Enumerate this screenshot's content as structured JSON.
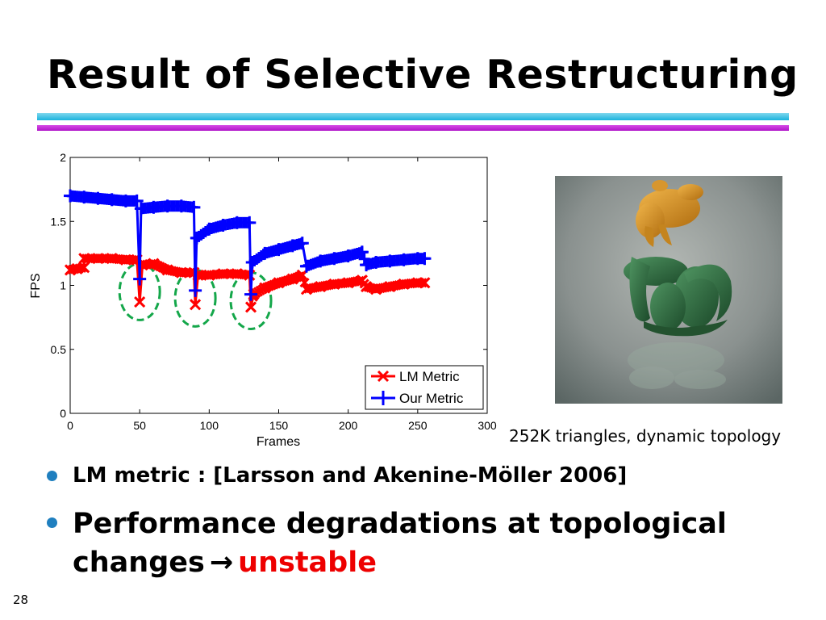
{
  "slide": {
    "title": "Result of Selective Restructuring",
    "page_number": "28"
  },
  "image": {
    "caption": "252K triangles, dynamic topology",
    "icon": "dragon-and-bunny-render"
  },
  "bullets": [
    {
      "text": "LM metric : [Larsson and Akenine-Möller 2006]"
    },
    {
      "text_before": "Performance degradations at topological changes",
      "arrow": "→",
      "highlight": "unstable",
      "highlight_color": "#ee0000"
    }
  ],
  "chart_data": {
    "type": "line",
    "title": "",
    "xlabel": "Frames",
    "ylabel": "FPS",
    "xlim": [
      0,
      300
    ],
    "ylim": [
      0,
      2
    ],
    "xticks": [
      0,
      50,
      100,
      150,
      200,
      250,
      300
    ],
    "yticks": [
      0,
      0.5,
      1,
      1.5,
      2
    ],
    "ytick_labels": [
      "0",
      "0.5",
      "1",
      "1.5",
      "2"
    ],
    "grid": false,
    "legend_position": "bottom-right",
    "series": [
      {
        "name": "LM Metric",
        "color": "#ff0000",
        "marker": "x",
        "points": [
          [
            0,
            1.12
          ],
          [
            5,
            1.13
          ],
          [
            10,
            1.14
          ],
          [
            10,
            1.21
          ],
          [
            20,
            1.21
          ],
          [
            30,
            1.21
          ],
          [
            40,
            1.2
          ],
          [
            48,
            1.2
          ],
          [
            50,
            0.87
          ],
          [
            52,
            1.16
          ],
          [
            60,
            1.17
          ],
          [
            70,
            1.12
          ],
          [
            80,
            1.1
          ],
          [
            89,
            1.1
          ],
          [
            90,
            0.85
          ],
          [
            92,
            1.08
          ],
          [
            100,
            1.08
          ],
          [
            110,
            1.09
          ],
          [
            120,
            1.09
          ],
          [
            129,
            1.08
          ],
          [
            130,
            0.83
          ],
          [
            132,
            0.93
          ],
          [
            140,
            0.98
          ],
          [
            150,
            1.02
          ],
          [
            160,
            1.05
          ],
          [
            167,
            1.08
          ],
          [
            170,
            0.97
          ],
          [
            180,
            0.99
          ],
          [
            190,
            1.01
          ],
          [
            200,
            1.02
          ],
          [
            210,
            1.04
          ],
          [
            213,
            0.99
          ],
          [
            220,
            0.97
          ],
          [
            230,
            0.99
          ],
          [
            240,
            1.01
          ],
          [
            250,
            1.02
          ],
          [
            255,
            1.02
          ]
        ]
      },
      {
        "name": "Our Metric",
        "color": "#0000ff",
        "marker": "+",
        "points": [
          [
            0,
            1.7
          ],
          [
            10,
            1.69
          ],
          [
            20,
            1.68
          ],
          [
            30,
            1.67
          ],
          [
            40,
            1.66
          ],
          [
            48,
            1.66
          ],
          [
            50,
            1.05
          ],
          [
            51,
            1.6
          ],
          [
            60,
            1.61
          ],
          [
            70,
            1.62
          ],
          [
            80,
            1.62
          ],
          [
            89,
            1.61
          ],
          [
            90,
            0.96
          ],
          [
            91,
            1.37
          ],
          [
            100,
            1.44
          ],
          [
            110,
            1.47
          ],
          [
            120,
            1.49
          ],
          [
            129,
            1.49
          ],
          [
            130,
            0.93
          ],
          [
            131,
            1.18
          ],
          [
            140,
            1.25
          ],
          [
            150,
            1.28
          ],
          [
            160,
            1.31
          ],
          [
            167,
            1.33
          ],
          [
            170,
            1.15
          ],
          [
            180,
            1.19
          ],
          [
            190,
            1.21
          ],
          [
            200,
            1.23
          ],
          [
            210,
            1.26
          ],
          [
            213,
            1.16
          ],
          [
            220,
            1.18
          ],
          [
            230,
            1.19
          ],
          [
            240,
            1.2
          ],
          [
            250,
            1.21
          ],
          [
            255,
            1.21
          ]
        ]
      }
    ],
    "highlights": [
      {
        "x": 50,
        "y": 0.95,
        "style": "dashed-ellipse",
        "color": "#14a74a"
      },
      {
        "x": 90,
        "y": 0.9,
        "style": "dashed-ellipse",
        "color": "#14a74a"
      },
      {
        "x": 130,
        "y": 0.88,
        "style": "dashed-ellipse",
        "color": "#14a74a"
      }
    ]
  }
}
